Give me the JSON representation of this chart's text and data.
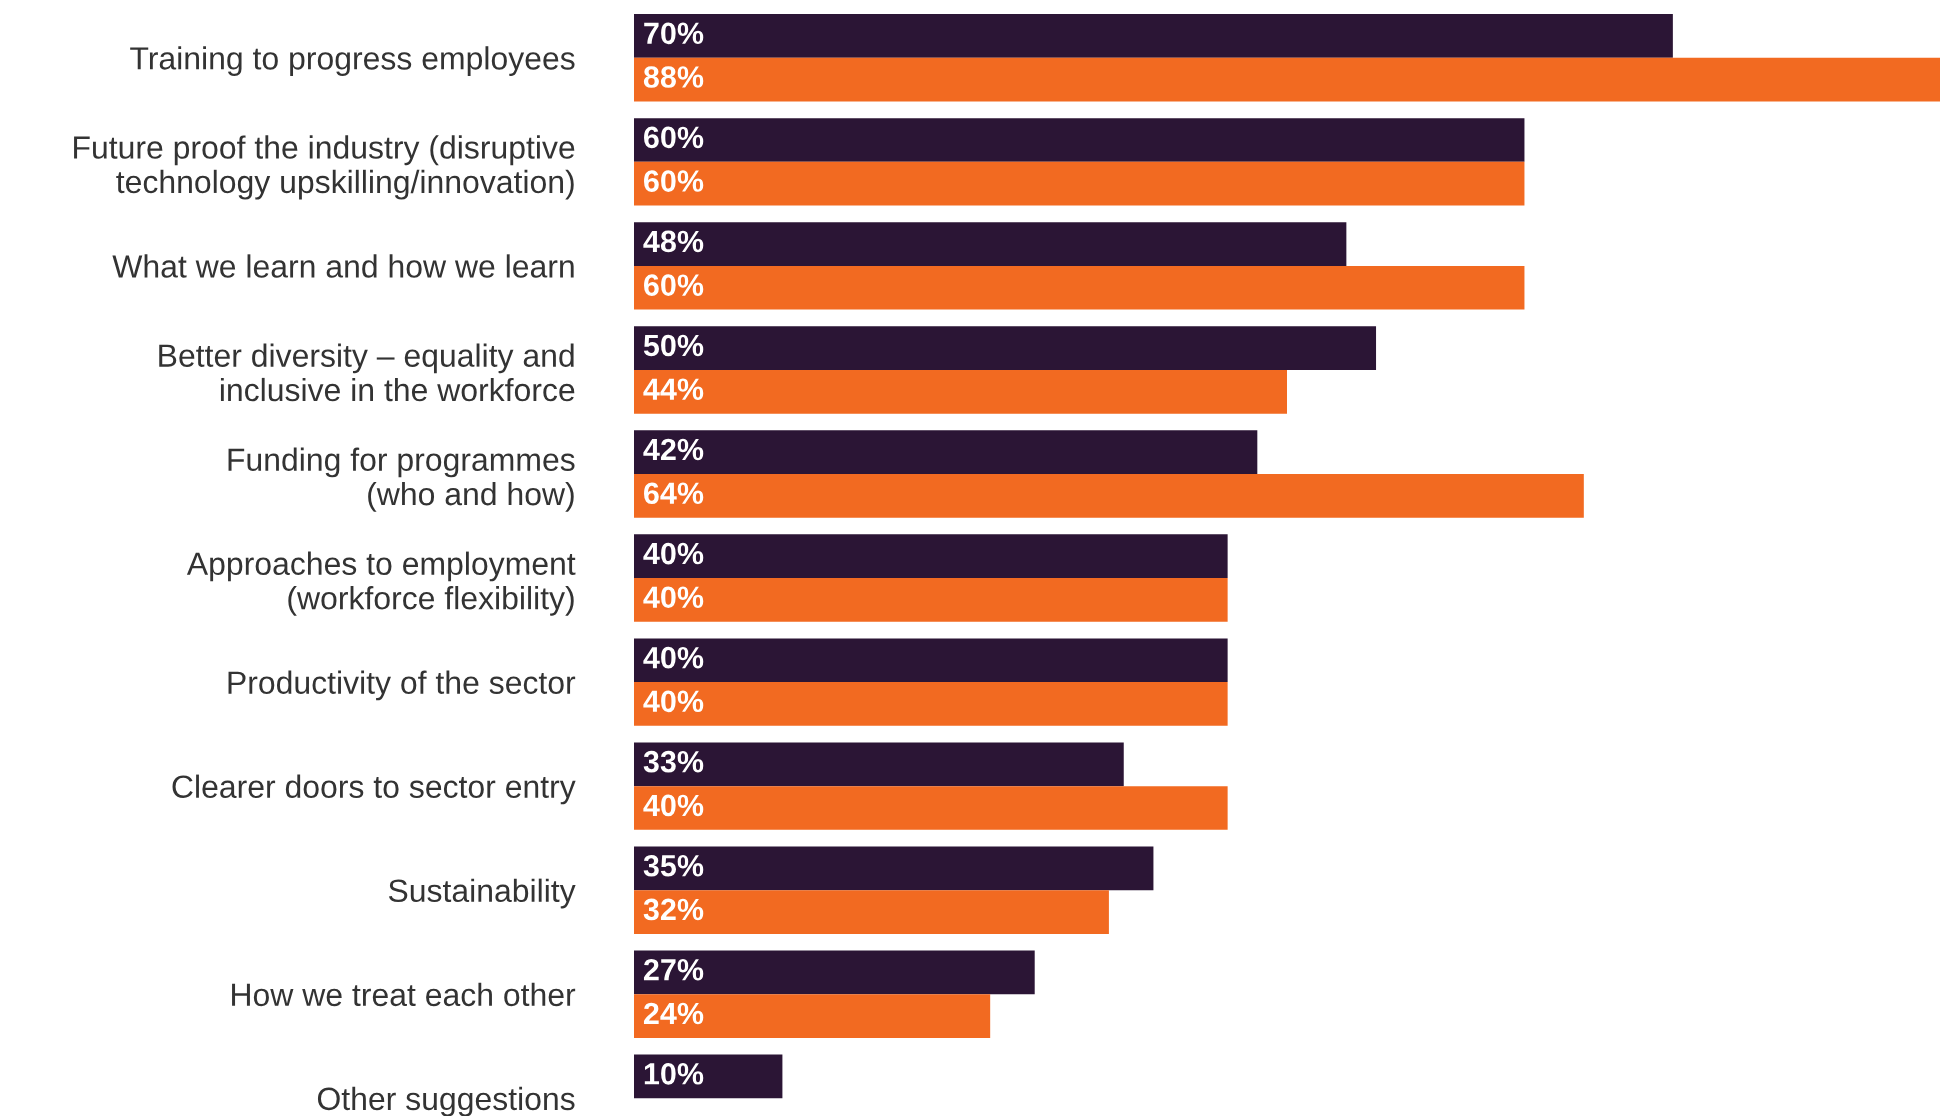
{
  "chart_data": {
    "type": "bar",
    "orientation": "horizontal",
    "tick_labels": "y",
    "grid": false,
    "legend": false,
    "categories": [
      "Training to progress employees",
      "Future proof the industry (disruptive\ntechnology upskilling/innovation)",
      "What we learn and how we learn",
      "Better diversity – equality and\ninclusive in the workforce",
      "Funding for programmes\n(who and how)",
      "Approaches to employment\n(workforce flexibility)",
      "Productivity of the sector",
      "Clearer doors to sector entry",
      "Sustainability",
      "How we treat each other",
      "Other suggestions"
    ],
    "series": [
      {
        "color": "#2b1535",
        "values": [
          70,
          60,
          48,
          50,
          42,
          40,
          40,
          33,
          35,
          27,
          10
        ],
        "value_labels": [
          "70%",
          "60%",
          "48%",
          "50%",
          "42%",
          "40%",
          "40%",
          "33%",
          "35%",
          "27%",
          "10%"
        ]
      },
      {
        "color": "#f26a21",
        "values": [
          88,
          60,
          60,
          44,
          64,
          40,
          40,
          40,
          32,
          24,
          null
        ],
        "value_labels": [
          "88%",
          "60%",
          "60%",
          "44%",
          "64%",
          "40%",
          "40%",
          "40%",
          "32%",
          "24%",
          null
        ]
      }
    ]
  }
}
